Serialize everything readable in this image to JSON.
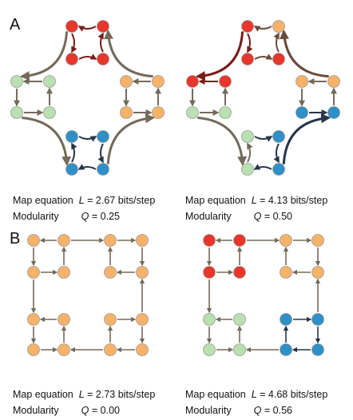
{
  "panels": {
    "a_label": "A",
    "b_label": "B"
  },
  "captions": {
    "a_left": {
      "line1": "Map equation",
      "var1": "L",
      "val1": "= 2.67 bits/step",
      "line2": "Modularity",
      "var2": "Q",
      "val2": "= 0.25"
    },
    "a_right": {
      "line1": "Map equation",
      "var1": "L",
      "val1": "= 4.13 bits/step",
      "line2": "Modularity",
      "var2": "Q",
      "val2": "= 0.50"
    },
    "b_left": {
      "line1": "Map equation",
      "var1": "L",
      "val1": "= 2.73 bits/step",
      "line2": "Modularity",
      "var2": "Q",
      "val2": "= 0.00"
    },
    "b_right": {
      "line1": "Map equation",
      "var1": "L",
      "val1": "= 4.68 bits/step",
      "line2": "Modularity",
      "var2": "Q",
      "val2": "= 0.56"
    }
  },
  "colors": {
    "red": "#e8362b",
    "orange": "#f7b26a",
    "green": "#b9e0b0",
    "blue": "#2f8fc7",
    "arrow_gray": "#756a5a",
    "arrow_dark": "#26354a",
    "arrow_darkred": "#7a1c18",
    "arrow_brown": "#6b4a3a"
  }
}
